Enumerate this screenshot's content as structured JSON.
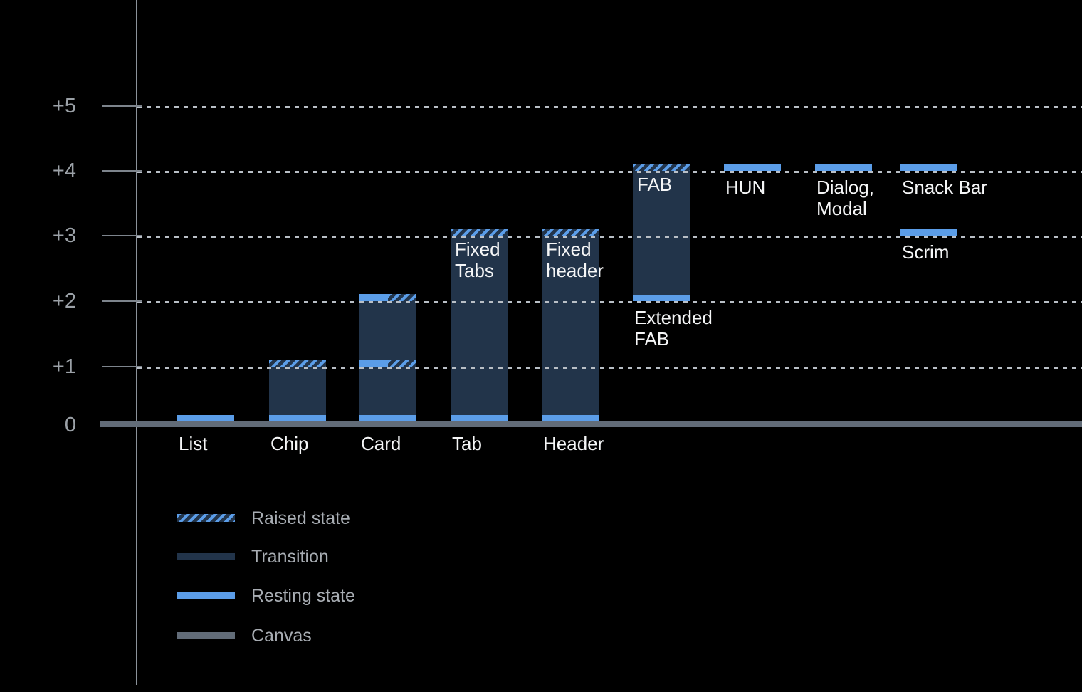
{
  "chart_data": {
    "type": "bar",
    "title": "",
    "y_ticks": [
      "+5",
      "+4",
      "+3",
      "+2",
      "+1",
      "0"
    ],
    "ylim": [
      0,
      5
    ],
    "grid": "dotted horizontal lines at +1 through +5",
    "legend_position": "bottom-left",
    "legend": [
      {
        "id": "raised",
        "label": "Raised state",
        "style": "hatched"
      },
      {
        "id": "transition",
        "label": "Transition",
        "style": "transition"
      },
      {
        "id": "resting",
        "label": "Resting state",
        "style": "resting"
      },
      {
        "id": "canvas",
        "label": "Canvas",
        "style": "canvas"
      }
    ],
    "bars": [
      {
        "id": "list",
        "label_lines": [
          "List"
        ],
        "markers": [
          {
            "level": 0,
            "type": "resting"
          }
        ]
      },
      {
        "id": "chip",
        "label_lines": [
          "Chip"
        ],
        "body": {
          "from": 0,
          "to": 1
        },
        "markers": [
          {
            "level": 0,
            "type": "resting"
          },
          {
            "level": 1,
            "type": "raised"
          }
        ]
      },
      {
        "id": "card",
        "label_lines": [
          "Card"
        ],
        "body": {
          "from": 0,
          "to": 2
        },
        "markers": [
          {
            "level": 0,
            "type": "resting"
          },
          {
            "level": 1,
            "type": "resting-raised"
          },
          {
            "level": 2,
            "type": "resting-raised"
          }
        ]
      },
      {
        "id": "tab",
        "label_lines": [
          "Tab"
        ],
        "inner_label_lines": [
          "Fixed",
          "Tabs"
        ],
        "body": {
          "from": 0,
          "to": 3
        },
        "markers": [
          {
            "level": 0,
            "type": "resting"
          },
          {
            "level": 3,
            "type": "raised"
          }
        ]
      },
      {
        "id": "header",
        "label_lines": [
          "Header"
        ],
        "inner_label_lines": [
          "Fixed",
          "header"
        ],
        "body": {
          "from": 0,
          "to": 3
        },
        "markers": [
          {
            "level": 0,
            "type": "resting"
          },
          {
            "level": 3,
            "type": "raised"
          }
        ]
      },
      {
        "id": "fab",
        "label_lines": [
          "Extended",
          "FAB"
        ],
        "label_below_level": 2,
        "inner_label_lines": [
          "FAB"
        ],
        "body": {
          "from": 2,
          "to": 4
        },
        "markers": [
          {
            "level": 2,
            "type": "resting"
          },
          {
            "level": 4,
            "type": "raised"
          }
        ]
      },
      {
        "id": "hun",
        "label_lines": [
          "HUN"
        ],
        "label_below_level": 4,
        "markers": [
          {
            "level": 4,
            "type": "resting"
          }
        ]
      },
      {
        "id": "dialog",
        "label_lines": [
          "Dialog,",
          "Modal"
        ],
        "label_below_level": 4,
        "markers": [
          {
            "level": 4,
            "type": "resting"
          }
        ]
      },
      {
        "id": "snackbar",
        "label_lines": [
          "Snack Bar"
        ],
        "label_below_level": 4,
        "markers": [
          {
            "level": 4,
            "type": "resting"
          }
        ]
      },
      {
        "id": "scrim",
        "label_lines": [
          "Scrim"
        ],
        "label_below_level": 3,
        "markers": [
          {
            "level": 3,
            "type": "resting"
          }
        ]
      }
    ],
    "colors": {
      "resting": "#5b9de8",
      "transition": "#22344a",
      "canvas": "#626c78",
      "background": "#000000",
      "gridline": "#b9bfc6",
      "axis": "#8b929a",
      "y_label": "#9ba1a7",
      "bar_label": "#f5f6f7",
      "legend_text": "#a8adb3"
    }
  }
}
